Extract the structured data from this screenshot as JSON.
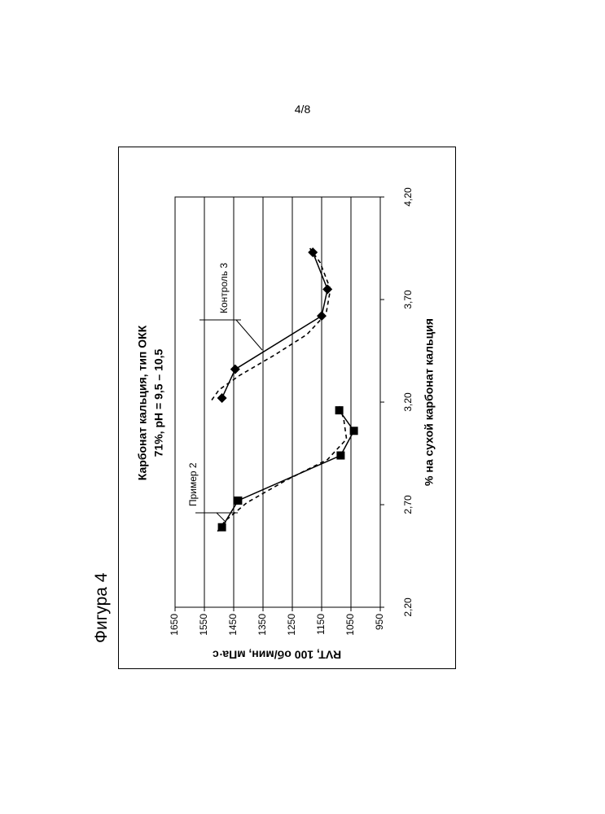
{
  "page_number": "4/8",
  "figure_label": "Фигура 4",
  "chart_data": {
    "type": "line",
    "title_lines": [
      "Карбонат кальция, тип ОКК",
      "71%, pH = 9,5 – 10,5"
    ],
    "xlabel": "% на сухой карбонат кальция",
    "ylabel": "RVT, 100 об/мин, мПа·с",
    "xlim": [
      2.2,
      4.2
    ],
    "ylim": [
      950,
      1650
    ],
    "x_ticks": [
      "2,20",
      "2,70",
      "3,20",
      "3,70",
      "4,20"
    ],
    "x_tick_values": [
      2.2,
      2.7,
      3.2,
      3.7,
      4.2
    ],
    "y_ticks": [
      "1650",
      "1550",
      "1450",
      "1350",
      "1250",
      "1150",
      "1050",
      "950"
    ],
    "y_tick_values": [
      1650,
      1550,
      1450,
      1350,
      1250,
      1150,
      1050,
      950
    ],
    "grid": true,
    "series": [
      {
        "name": "Пример 2",
        "marker": "square",
        "line": "solid",
        "x": [
          2.59,
          2.72,
          2.94,
          3.06,
          3.16
        ],
        "y": [
          1490,
          1435,
          1085,
          1040,
          1090
        ],
        "fit": {
          "x": [
            2.57,
            2.62,
            2.71,
            2.82,
            2.92,
            3.02,
            3.12,
            3.18
          ],
          "y": [
            1505,
            1480,
            1405,
            1270,
            1130,
            1065,
            1075,
            1090
          ]
        }
      },
      {
        "name": "Контроль 3",
        "marker": "diamond",
        "line": "solid",
        "x": [
          3.22,
          3.36,
          3.62,
          3.75,
          3.93
        ],
        "y": [
          1490,
          1445,
          1150,
          1130,
          1180
        ],
        "fit": {
          "x": [
            3.21,
            3.26,
            3.33,
            3.43,
            3.53,
            3.63,
            3.75,
            3.88,
            3.95
          ],
          "y": [
            1525,
            1500,
            1430,
            1310,
            1200,
            1135,
            1120,
            1155,
            1190
          ]
        }
      }
    ]
  }
}
